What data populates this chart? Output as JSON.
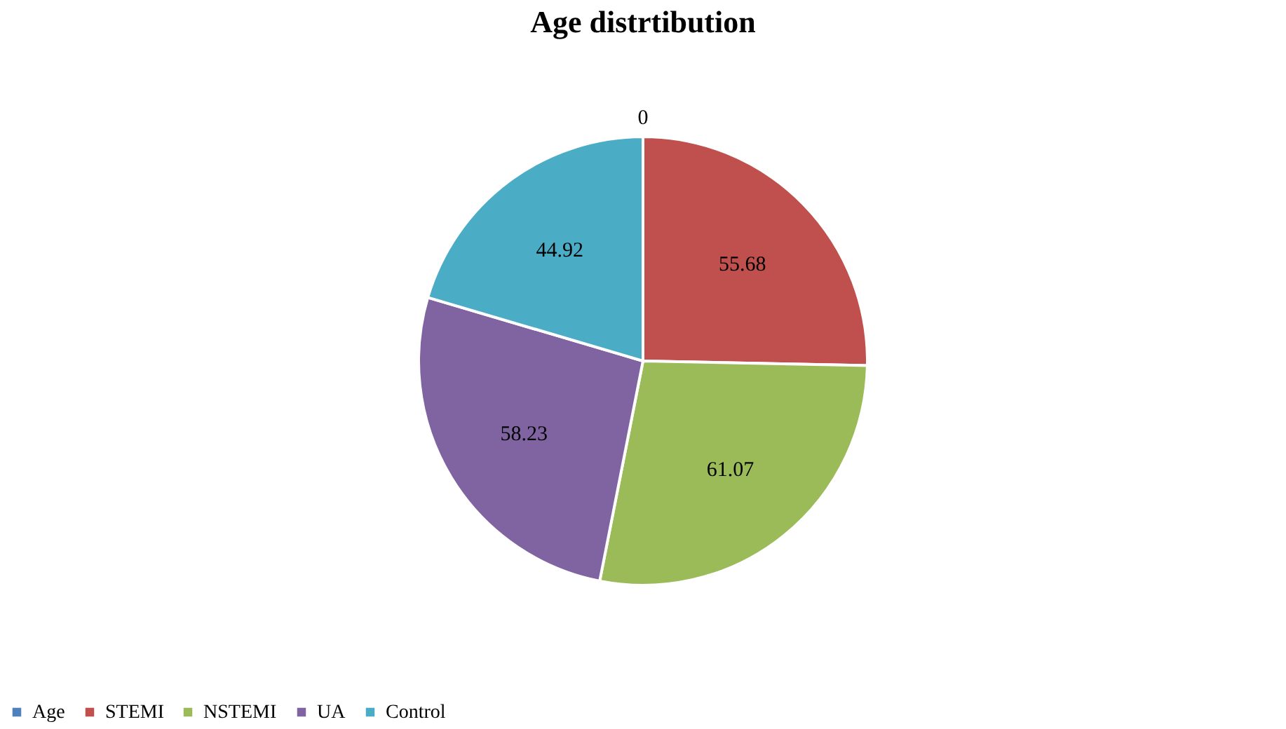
{
  "chart_data": {
    "type": "pie",
    "title": "Age distrtibution",
    "categories": [
      "Age",
      "STEMI",
      "NSTEMI",
      "UA",
      "Control"
    ],
    "values": [
      0,
      55.68,
      61.07,
      58.23,
      44.92
    ],
    "colors": [
      "#4f81bd",
      "#c0504d",
      "#9bbb59",
      "#8064a2",
      "#4bacc6"
    ],
    "value_labels": [
      "0",
      "55.68",
      "61.07",
      "58.23",
      "44.92"
    ],
    "legend": "bottom"
  }
}
